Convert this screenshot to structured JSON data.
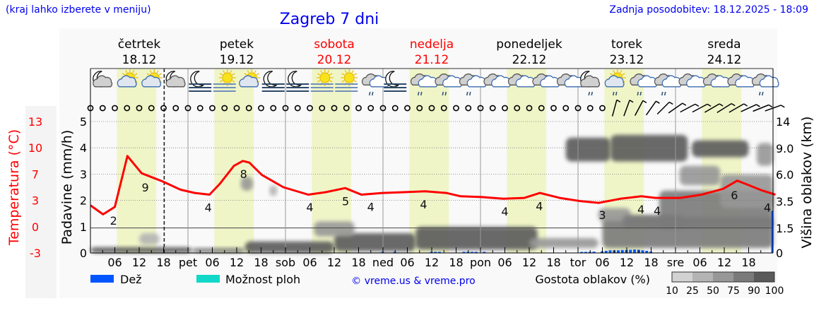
{
  "header": {
    "hint": "(kraj lahko izberete v meniju)",
    "title": "Zagreb 7 dni",
    "updated": "Zadnja posodobitev: 18.12.2025 - 18:09"
  },
  "days": [
    {
      "name": "četrtek",
      "date": "18.12",
      "weekend": false
    },
    {
      "name": "petek",
      "date": "19.12",
      "weekend": false
    },
    {
      "name": "sobota",
      "date": "20.12",
      "weekend": true
    },
    {
      "name": "nedelja",
      "date": "21.12",
      "weekend": true
    },
    {
      "name": "ponedeljek",
      "date": "22.12",
      "weekend": false
    },
    {
      "name": "torek",
      "date": "23.12",
      "weekend": false
    },
    {
      "name": "sreda",
      "date": "24.12",
      "weekend": false
    }
  ],
  "legend": {
    "rain": "Dež",
    "showers": "Možnost ploh",
    "copyright": "© vreme.us & vreme.pro",
    "cloud_density": "Gostota oblakov (%)",
    "density_ticks": [
      "10",
      "25",
      "50",
      "75",
      "90",
      "100"
    ]
  },
  "colors": {
    "rain": "#0055ff",
    "showers": "#11d8c8",
    "temperature": "#ff0000",
    "daylight": "#f0f5c8",
    "weekend": "#ff0000",
    "density": [
      "#d2d2d2",
      "#b4b4b4",
      "#979797",
      "#7a7a7a",
      "#5a5a5a"
    ]
  },
  "chart_data": {
    "type": "line",
    "title": "Zagreb 7 dni",
    "x_unit": "hours from 18.12 00:00",
    "x_tick_labels": [
      "06",
      "12",
      "18",
      "pet",
      "06",
      "12",
      "18",
      "sob",
      "06",
      "12",
      "18",
      "ned",
      "06",
      "12",
      "18",
      "pon",
      "06",
      "12",
      "18",
      "tor",
      "06",
      "12",
      "18",
      "sre",
      "06",
      "12",
      "18"
    ],
    "now_hour": 18.15,
    "daylight_hours": [
      6.5,
      16.2
    ],
    "axes": {
      "precip": {
        "label": "Padavine (mm/h)",
        "ticks": [
          "0",
          "1",
          "2",
          "3",
          "4",
          "5"
        ],
        "range": [
          0,
          5
        ]
      },
      "temperature": {
        "label": "Temperatura (°C)",
        "ticks": [
          "-3",
          "0",
          "3",
          "7",
          "10",
          "13"
        ],
        "range": [
          -3,
          13
        ]
      },
      "cloud_height": {
        "label": "Višina oblakov (km)",
        "ticks": [
          "0",
          "1.5",
          "3.5",
          "6.0",
          "9.0",
          "14"
        ]
      }
    },
    "temperature": {
      "name": "Temperatura",
      "points": [
        [
          0,
          2.8
        ],
        [
          3.1,
          1.7
        ],
        [
          6,
          2.6
        ],
        [
          9.1,
          8.8
        ],
        [
          12.6,
          6.7
        ],
        [
          17.8,
          5.7
        ],
        [
          22.2,
          4.7
        ],
        [
          25.7,
          4.3
        ],
        [
          29.3,
          4.1
        ],
        [
          31.8,
          5.4
        ],
        [
          35.3,
          7.6
        ],
        [
          37.5,
          8.2
        ],
        [
          39.1,
          8.0
        ],
        [
          42.2,
          6.5
        ],
        [
          47.5,
          5.0
        ],
        [
          53.6,
          4.1
        ],
        [
          57.9,
          4.4
        ],
        [
          62.7,
          4.9
        ],
        [
          66.7,
          4.1
        ],
        [
          71.9,
          4.3
        ],
        [
          77.1,
          4.4
        ],
        [
          82.4,
          4.5
        ],
        [
          87.6,
          4.3
        ],
        [
          91.1,
          3.9
        ],
        [
          96.3,
          3.8
        ],
        [
          101.6,
          3.6
        ],
        [
          106.8,
          3.7
        ],
        [
          110.6,
          4.3
        ],
        [
          115.5,
          3.7
        ],
        [
          120.8,
          3.3
        ],
        [
          125.1,
          3.1
        ],
        [
          130.4,
          3.6
        ],
        [
          135.6,
          3.9
        ],
        [
          139.1,
          3.7
        ],
        [
          145.2,
          3.7
        ],
        [
          150.4,
          4.1
        ],
        [
          155.7,
          4.8
        ],
        [
          159.2,
          5.8
        ],
        [
          161.8,
          5.3
        ],
        [
          165.3,
          4.6
        ],
        [
          168.6,
          4.1
        ]
      ],
      "labels": [
        [
          5.7,
          "2"
        ],
        [
          13.5,
          "9"
        ],
        [
          29,
          "4"
        ],
        [
          37.7,
          "8"
        ],
        [
          54,
          "4"
        ],
        [
          62.8,
          "5"
        ],
        [
          69,
          "4"
        ],
        [
          82,
          "4"
        ],
        [
          102,
          "4"
        ],
        [
          110.5,
          "4"
        ],
        [
          126,
          "3"
        ],
        [
          135.5,
          "4"
        ],
        [
          139.5,
          "4"
        ],
        [
          158.5,
          "6"
        ],
        [
          168.5,
          "4"
        ]
      ]
    },
    "precipitation_rain": [
      [
        72,
        0.03
      ],
      [
        75,
        0.03
      ],
      [
        84,
        0.04
      ],
      [
        85,
        0.04
      ],
      [
        86,
        0.04
      ],
      [
        92,
        0.04
      ],
      [
        93,
        0.04
      ],
      [
        94,
        0.04
      ],
      [
        95,
        0.03
      ],
      [
        97,
        0.03
      ],
      [
        121,
        0.04
      ],
      [
        122,
        0.04
      ],
      [
        123,
        0.04
      ],
      [
        124,
        0.05
      ],
      [
        126,
        0.06
      ],
      [
        127,
        0.08
      ],
      [
        128,
        0.1
      ],
      [
        129,
        0.1
      ],
      [
        130,
        0.1
      ],
      [
        131,
        0.11
      ],
      [
        132,
        0.11
      ],
      [
        133,
        0.12
      ],
      [
        134,
        0.13
      ],
      [
        135,
        0.12
      ],
      [
        136,
        0.1
      ],
      [
        137,
        0.08
      ],
      [
        138,
        0.05
      ],
      [
        168,
        1.6
      ]
    ],
    "cloud_cover": [
      {
        "h": [
          0,
          25
        ],
        "km": [
          0,
          0.35
        ],
        "density": 90
      },
      {
        "h": [
          25,
          38
        ],
        "km": [
          0,
          0.3
        ],
        "density": 75
      },
      {
        "h": [
          38,
          60
        ],
        "km": [
          0,
          0.7
        ],
        "density": 90
      },
      {
        "h": [
          60,
          80
        ],
        "km": [
          0.1,
          1.2
        ],
        "density": 90
      },
      {
        "h": [
          80,
          110
        ],
        "km": [
          0.2,
          1.6
        ],
        "density": 90
      },
      {
        "h": [
          108,
          125
        ],
        "km": [
          0.3,
          0.9
        ],
        "density": 50
      },
      {
        "h": [
          126,
          168
        ],
        "km": [
          0.3,
          2.3
        ],
        "density": 75
      },
      {
        "h": [
          140,
          168
        ],
        "km": [
          1.5,
          4.5
        ],
        "density": 75
      },
      {
        "h": [
          155,
          168
        ],
        "km": [
          3,
          6
        ],
        "density": 50
      },
      {
        "h": [
          12,
          17
        ],
        "km": [
          0.5,
          1.2
        ],
        "density": 25
      },
      {
        "h": [
          55,
          65
        ],
        "km": [
          1.0,
          2.0
        ],
        "density": 50
      },
      {
        "h": [
          125,
          133
        ],
        "km": [
          2.0,
          3.0
        ],
        "density": 50
      },
      {
        "h": [
          131,
          146
        ],
        "km": [
          1.5,
          2.5
        ],
        "density": 75
      },
      {
        "h": [
          117,
          128
        ],
        "km": [
          7.5,
          11
        ],
        "density": 90
      },
      {
        "h": [
          128,
          147
        ],
        "km": [
          7.5,
          11.5
        ],
        "density": 90
      },
      {
        "h": [
          148,
          162
        ],
        "km": [
          8,
          10.5
        ],
        "density": 90
      },
      {
        "h": [
          145,
          155
        ],
        "km": [
          5,
          7
        ],
        "density": 50
      },
      {
        "h": [
          164,
          168
        ],
        "km": [
          7,
          10
        ],
        "density": 50
      },
      {
        "h": [
          37,
          40
        ],
        "km": [
          4.5,
          5.8
        ],
        "density": 50
      },
      {
        "h": [
          44,
          46
        ],
        "km": [
          4,
          5
        ],
        "density": 25
      }
    ],
    "weather_icons": [
      "moon-cloud",
      "sun-cloud",
      "sun-cloud",
      "moon-cloud",
      "moon-fog",
      "sun-fog",
      "sun-cloud",
      "moon-fog",
      "moon-fog",
      "sun-fog",
      "sun-fog",
      "cloud-rain",
      "moon-fog",
      "cloud-rain",
      "cloud-rain",
      "cloud-rain",
      "cloud",
      "cloud",
      "cloud",
      "cloud",
      "moon-cloud-rain",
      "sun-cloud-rain",
      "cloud-rain",
      "cloud-rain",
      "cloud",
      "cloud",
      "cloud",
      "cloud-rain"
    ],
    "wind": {
      "calm_until_hour": 126,
      "barbs_tilt_deg": [
        [
          129,
          75
        ],
        [
          132,
          70
        ],
        [
          135,
          62
        ],
        [
          138,
          55
        ],
        [
          141,
          45
        ],
        [
          144,
          35
        ],
        [
          147,
          28
        ],
        [
          150,
          28
        ],
        [
          153,
          30
        ],
        [
          156,
          32
        ],
        [
          159,
          30
        ],
        [
          162,
          25
        ],
        [
          165,
          22
        ],
        [
          168,
          20
        ]
      ]
    }
  }
}
